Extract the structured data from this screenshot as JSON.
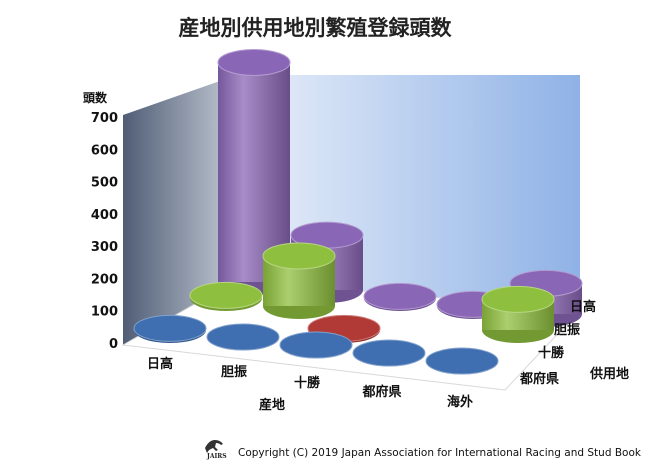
{
  "chart_data": {
    "type": "bar",
    "title": "産地別供用地別繁殖登録頭数",
    "ylabel": "頭数",
    "xlabel": "産地",
    "zlabel": "供用地",
    "ylim": [
      0,
      700
    ],
    "yticks": [
      0,
      100,
      200,
      300,
      400,
      500,
      600,
      700
    ],
    "x_categories": [
      "日高",
      "胆振",
      "十勝",
      "都府県",
      "海外"
    ],
    "series": [
      {
        "name": "都府県",
        "color": "#3f6fb0",
        "values": [
          5,
          3,
          3,
          3,
          3
        ]
      },
      {
        "name": "十勝",
        "color": "#b23a36",
        "values": [
          0,
          0,
          5,
          0,
          0
        ]
      },
      {
        "name": "胆振",
        "color": "#8fbf3e",
        "values": [
          8,
          155,
          0,
          0,
          95
        ]
      },
      {
        "name": "日高",
        "color": "#8a66b6",
        "values": [
          680,
          170,
          5,
          5,
          95
        ]
      }
    ]
  },
  "copyright": "Copyright (C) 2019 Japan Association for International Racing and Stud Book",
  "logo_text": "JAIRS"
}
